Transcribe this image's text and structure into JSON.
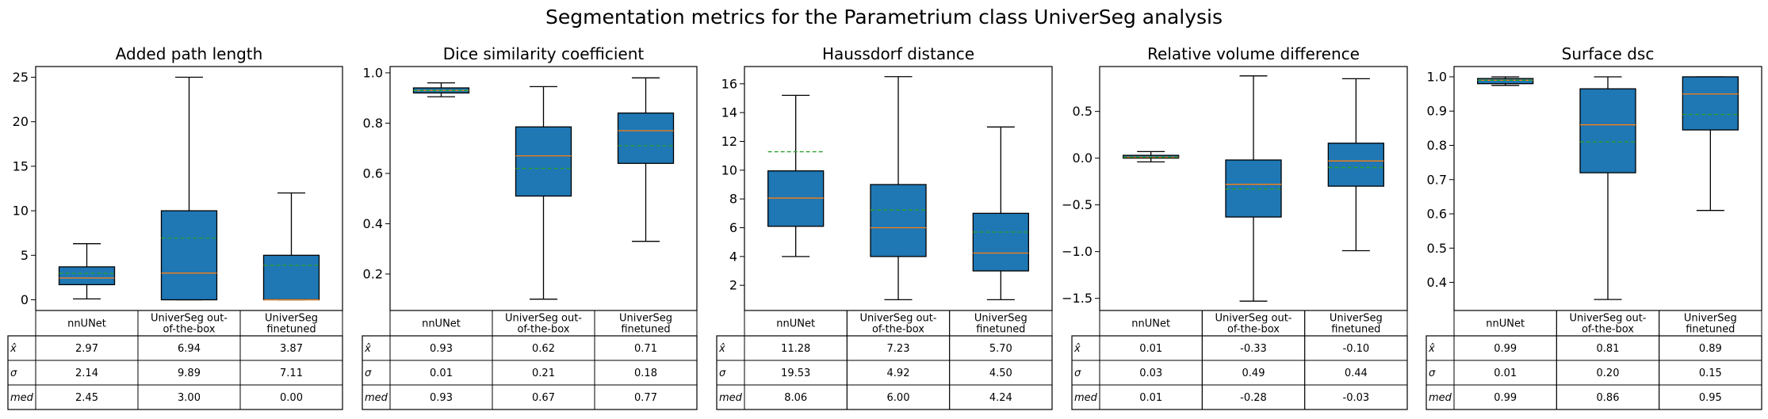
{
  "suptitle": "Segmentation metrics for the Parametrium class UniverSeg analysis",
  "table": {
    "columns": [
      "nnUNet",
      "UniverSeg out-of-the-box",
      "UniverSeg finetuned"
    ],
    "column_lines": [
      [
        "nnUNet"
      ],
      [
        "UniverSeg out-",
        "of-the-box"
      ],
      [
        "UniverSeg",
        "finetuned"
      ]
    ],
    "row_labels": [
      "x̂",
      "σ",
      "med"
    ]
  },
  "colors": {
    "box_fill": "#1f77b4",
    "median": "#ff7f0e",
    "mean": "#2ca02c",
    "edge": "#000000"
  },
  "chart_data": [
    {
      "type": "box",
      "title": "Added path length",
      "ylim": [
        -1.2,
        26.2
      ],
      "yticks": [
        0,
        5,
        10,
        15,
        20,
        25
      ],
      "ytick_labels": [
        "0",
        "5",
        "10",
        "15",
        "20",
        "25"
      ],
      "categories": [
        "nnUNet",
        "UniverSeg out-of-the-box",
        "UniverSeg finetuned"
      ],
      "boxes": [
        {
          "whislo": 0.1,
          "q1": 1.7,
          "med": 2.45,
          "mean": 2.97,
          "q3": 3.7,
          "whishi": 6.3
        },
        {
          "whislo": 0.0,
          "q1": 0.0,
          "med": 3.0,
          "mean": 6.94,
          "q3": 10.0,
          "whishi": 25.0
        },
        {
          "whislo": 0.0,
          "q1": 0.0,
          "med": 0.0,
          "mean": 3.87,
          "q3": 5.0,
          "whishi": 12.0
        }
      ],
      "table_rows": [
        [
          "2.97",
          "6.94",
          "3.87"
        ],
        [
          "2.14",
          "9.89",
          "7.11"
        ],
        [
          "2.45",
          "3.00",
          "0.00"
        ]
      ]
    },
    {
      "type": "box",
      "title": "Dice similarity coefficient",
      "ylim": [
        0.055,
        1.025
      ],
      "yticks": [
        0.2,
        0.4,
        0.6,
        0.8,
        1.0
      ],
      "ytick_labels": [
        "0.2",
        "0.4",
        "0.6",
        "0.8",
        "1.0"
      ],
      "categories": [
        "nnUNet",
        "UniverSeg out-of-the-box",
        "UniverSeg finetuned"
      ],
      "boxes": [
        {
          "whislo": 0.905,
          "q1": 0.92,
          "med": 0.93,
          "mean": 0.93,
          "q3": 0.94,
          "whishi": 0.96
        },
        {
          "whislo": 0.1,
          "q1": 0.51,
          "med": 0.67,
          "mean": 0.62,
          "q3": 0.785,
          "whishi": 0.945
        },
        {
          "whislo": 0.33,
          "q1": 0.64,
          "med": 0.77,
          "mean": 0.71,
          "q3": 0.84,
          "whishi": 0.98
        }
      ],
      "table_rows": [
        [
          "0.93",
          "0.62",
          "0.71"
        ],
        [
          "0.01",
          "0.21",
          "0.18"
        ],
        [
          "0.93",
          "0.67",
          "0.77"
        ]
      ]
    },
    {
      "type": "box",
      "title": "Haussdorf distance",
      "ylim": [
        0.25,
        17.2
      ],
      "yticks": [
        2,
        4,
        6,
        8,
        10,
        12,
        14,
        16
      ],
      "ytick_labels": [
        "2",
        "4",
        "6",
        "8",
        "10",
        "12",
        "14",
        "16"
      ],
      "categories": [
        "nnUNet",
        "UniverSeg out-of-the-box",
        "UniverSeg finetuned"
      ],
      "boxes": [
        {
          "whislo": 4.0,
          "q1": 6.1,
          "med": 8.06,
          "mean": 11.28,
          "q3": 9.95,
          "whishi": 15.2
        },
        {
          "whislo": 1.0,
          "q1": 4.0,
          "med": 6.0,
          "mean": 7.23,
          "q3": 9.0,
          "whishi": 16.5
        },
        {
          "whislo": 1.0,
          "q1": 3.0,
          "med": 4.24,
          "mean": 5.7,
          "q3": 7.0,
          "whishi": 13.0
        }
      ],
      "table_rows": [
        [
          "11.28",
          "7.23",
          "5.70"
        ],
        [
          "19.53",
          "4.92",
          "4.50"
        ],
        [
          "8.06",
          "6.00",
          "4.24"
        ]
      ]
    },
    {
      "type": "box",
      "title": "Relative volume difference",
      "ylim": [
        -1.63,
        0.98
      ],
      "yticks": [
        -1.5,
        -1.0,
        -0.5,
        0.0,
        0.5
      ],
      "ytick_labels": [
        "−1.5",
        "−1.0",
        "−0.5",
        "0.0",
        "0.5"
      ],
      "categories": [
        "nnUNet",
        "UniverSeg out-of-the-box",
        "UniverSeg finetuned"
      ],
      "boxes": [
        {
          "whislo": -0.04,
          "q1": 0.0,
          "med": 0.01,
          "mean": 0.01,
          "q3": 0.03,
          "whishi": 0.07
        },
        {
          "whislo": -1.53,
          "q1": -0.63,
          "med": -0.28,
          "mean": -0.33,
          "q3": -0.02,
          "whishi": 0.88
        },
        {
          "whislo": -0.99,
          "q1": -0.3,
          "med": -0.03,
          "mean": -0.1,
          "q3": 0.16,
          "whishi": 0.85
        }
      ],
      "table_rows": [
        [
          "0.01",
          "-0.33",
          "-0.10"
        ],
        [
          "0.03",
          "0.49",
          "0.44"
        ],
        [
          "0.01",
          "-0.28",
          "-0.03"
        ]
      ]
    },
    {
      "type": "box",
      "title": "Surface dsc",
      "ylim": [
        0.318,
        1.03
      ],
      "yticks": [
        0.4,
        0.5,
        0.6,
        0.7,
        0.8,
        0.9,
        1.0
      ],
      "ytick_labels": [
        "0.4",
        "0.5",
        "0.6",
        "0.7",
        "0.8",
        "0.9",
        "1.0"
      ],
      "categories": [
        "nnUNet",
        "UniverSeg out-of-the-box",
        "UniverSeg finetuned"
      ],
      "boxes": [
        {
          "whislo": 0.975,
          "q1": 0.98,
          "med": 0.99,
          "mean": 0.99,
          "q3": 0.995,
          "whishi": 1.0
        },
        {
          "whislo": 0.35,
          "q1": 0.72,
          "med": 0.86,
          "mean": 0.81,
          "q3": 0.965,
          "whishi": 1.0
        },
        {
          "whislo": 0.61,
          "q1": 0.845,
          "med": 0.95,
          "mean": 0.89,
          "q3": 1.0,
          "whishi": 1.0
        }
      ],
      "table_rows": [
        [
          "0.99",
          "0.81",
          "0.89"
        ],
        [
          "0.01",
          "0.20",
          "0.15"
        ],
        [
          "0.99",
          "0.86",
          "0.95"
        ]
      ]
    }
  ]
}
